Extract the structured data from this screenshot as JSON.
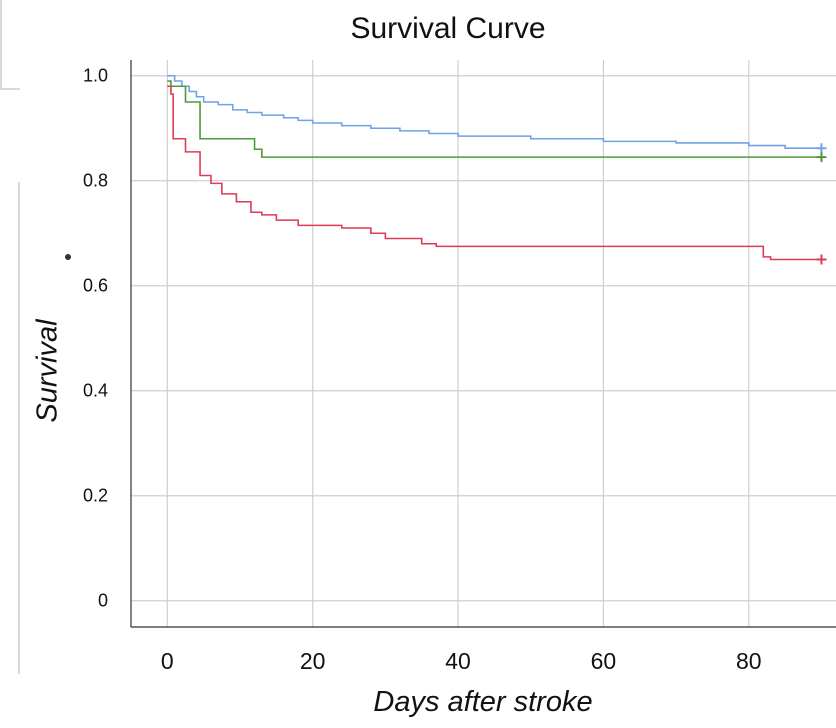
{
  "chart_data": {
    "type": "line",
    "title": "Survival Curve",
    "xlabel": "Days after stroke",
    "ylabel": "Survival",
    "xlim": [
      -5,
      92
    ],
    "ylim": [
      -0.05,
      1.03
    ],
    "x_ticks": [
      0,
      20,
      40,
      60,
      80
    ],
    "y_ticks": [
      0,
      0.2,
      0.4,
      0.6,
      0.8,
      1.0
    ],
    "x_tick_labels": [
      "0",
      "20",
      "40",
      "60",
      "80"
    ],
    "y_tick_labels": [
      "0",
      "0.2",
      "0.4",
      "0.6",
      "0.8",
      "1.0"
    ],
    "grid": true,
    "series": [
      {
        "color": "#6fa2e6",
        "censored_end": true,
        "points": [
          [
            0,
            1.0
          ],
          [
            1,
            0.99
          ],
          [
            2,
            0.98
          ],
          [
            3,
            0.97
          ],
          [
            4,
            0.96
          ],
          [
            5,
            0.95
          ],
          [
            7,
            0.945
          ],
          [
            9,
            0.935
          ],
          [
            11,
            0.93
          ],
          [
            13,
            0.925
          ],
          [
            16,
            0.92
          ],
          [
            18,
            0.915
          ],
          [
            20,
            0.91
          ],
          [
            24,
            0.905
          ],
          [
            28,
            0.9
          ],
          [
            32,
            0.895
          ],
          [
            36,
            0.89
          ],
          [
            40,
            0.885
          ],
          [
            50,
            0.88
          ],
          [
            60,
            0.875
          ],
          [
            70,
            0.872
          ],
          [
            80,
            0.867
          ],
          [
            85,
            0.862
          ],
          [
            90,
            0.862
          ]
        ]
      },
      {
        "color": "#4d9a3c",
        "censored_end": true,
        "points": [
          [
            0,
            0.99
          ],
          [
            0.5,
            0.98
          ],
          [
            2.5,
            0.95
          ],
          [
            4.5,
            0.88
          ],
          [
            12,
            0.86
          ],
          [
            13,
            0.845
          ],
          [
            90,
            0.845
          ]
        ]
      },
      {
        "color": "#e03a59",
        "censored_end": true,
        "points": [
          [
            0,
            0.98
          ],
          [
            0.5,
            0.965
          ],
          [
            0.8,
            0.88
          ],
          [
            2.5,
            0.855
          ],
          [
            4.5,
            0.81
          ],
          [
            6,
            0.795
          ],
          [
            7.5,
            0.775
          ],
          [
            9.5,
            0.76
          ],
          [
            11.5,
            0.74
          ],
          [
            13,
            0.735
          ],
          [
            15,
            0.725
          ],
          [
            18,
            0.715
          ],
          [
            24,
            0.71
          ],
          [
            28,
            0.7
          ],
          [
            30,
            0.69
          ],
          [
            35,
            0.68
          ],
          [
            37,
            0.675
          ],
          [
            82,
            0.655
          ],
          [
            83,
            0.65
          ],
          [
            90,
            0.65
          ]
        ]
      }
    ]
  }
}
